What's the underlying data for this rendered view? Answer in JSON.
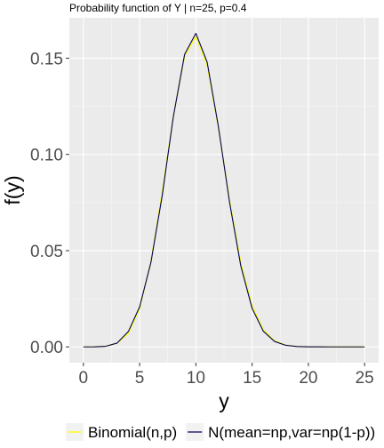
{
  "chart_data": {
    "type": "line",
    "title": "Probability function of Y | n=25, p=0.4",
    "xlabel": "y",
    "ylabel": "f(y)",
    "xlim": [
      -1.25,
      26.25
    ],
    "ylim": [
      -0.0082,
      0.171
    ],
    "x_ticks": [
      0,
      5,
      10,
      15,
      20,
      25
    ],
    "y_ticks": [
      0.0,
      0.05,
      0.1,
      0.15
    ],
    "y_tick_labels": [
      "0.00",
      "0.05",
      "0.10",
      "0.15"
    ],
    "grid": true,
    "legend_position": "bottom",
    "x": [
      0,
      1,
      2,
      3,
      4,
      5,
      6,
      7,
      8,
      9,
      10,
      11,
      12,
      13,
      14,
      15,
      16,
      17,
      18,
      19,
      20,
      21,
      22,
      23,
      24,
      25
    ],
    "series": [
      {
        "name": "Binomial(n,p)",
        "color": "#ffff00",
        "values": [
          2.8e-06,
          4.72e-05,
          0.000377,
          0.00193,
          0.00705,
          0.0199,
          0.0442,
          0.08,
          0.12,
          0.1511,
          0.1612,
          0.1465,
          0.114,
          0.076,
          0.0434,
          0.0212,
          0.0088,
          0.0031,
          0.00092,
          0.00023,
          4.6e-05,
          7.3e-06,
          8.9e-07,
          1e-07,
          0.0,
          0.0
        ]
      },
      {
        "name": "N(mean=np,var=np(1-p))",
        "color": "#00005a",
        "values": [
          2e-06,
          3.5e-05,
          0.00033,
          0.002,
          0.008,
          0.0208,
          0.0438,
          0.0784,
          0.1197,
          0.152,
          0.1629,
          0.148,
          0.1145,
          0.0749,
          0.0419,
          0.02,
          0.0081,
          0.0028,
          0.00082,
          0.00021,
          4.5e-05,
          8.1e-06,
          1.2e-06,
          1.5e-07,
          0.0,
          0.0
        ]
      }
    ]
  }
}
